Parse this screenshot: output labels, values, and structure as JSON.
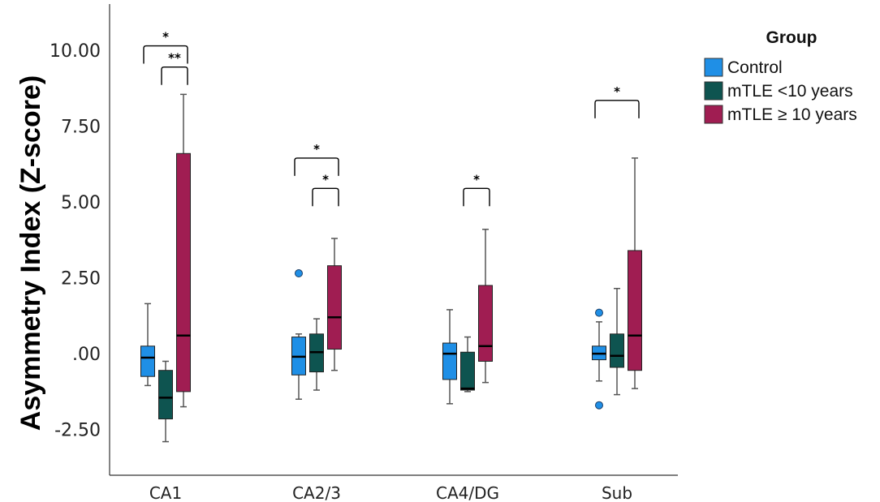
{
  "chart_data": {
    "type": "boxplot",
    "title": "",
    "xlabel": "",
    "ylabel": "Asymmetry Index (Z-score)",
    "ylim": [
      -3.8,
      11.5
    ],
    "yticks": [
      {
        "value": 10.0,
        "label": "10.00"
      },
      {
        "value": 7.5,
        "label": "7.50"
      },
      {
        "value": 5.0,
        "label": "5.00"
      },
      {
        "value": 2.5,
        "label": "2.50"
      },
      {
        "value": 0.0,
        "label": ".00"
      },
      {
        "value": -2.5,
        "label": "-2.50"
      }
    ],
    "categories": [
      "CA1",
      "CA2/3",
      "CA4/DG",
      "Sub"
    ],
    "legend": {
      "title": "Group",
      "position": "top-right",
      "entries": [
        {
          "name": "Control",
          "color": "#1f8fe6"
        },
        {
          "name": "mTLE <10 years",
          "color": "#0e5450"
        },
        {
          "name": "mTLE ≥ 10 years",
          "color": "#a01d52"
        }
      ]
    },
    "series": [
      {
        "name": "Control",
        "color": "#1f8fe6",
        "boxes": [
          {
            "min": -1.0,
            "q1": -0.7,
            "median": -0.08,
            "q3": 0.3,
            "max": 1.7,
            "outliers": []
          },
          {
            "min": -1.45,
            "q1": -0.65,
            "median": -0.05,
            "q3": 0.6,
            "max": 0.7,
            "outliers": [
              2.7
            ]
          },
          {
            "min": -1.6,
            "q1": -0.8,
            "median": 0.05,
            "q3": 0.4,
            "max": 1.5,
            "outliers": []
          },
          {
            "min": -0.85,
            "q1": -0.15,
            "median": 0.05,
            "q3": 0.3,
            "max": 1.1,
            "outliers": [
              1.4,
              -1.65
            ]
          }
        ]
      },
      {
        "name": "mTLE <10 years",
        "color": "#0e5450",
        "boxes": [
          {
            "min": -2.85,
            "q1": -2.1,
            "median": -1.4,
            "q3": -0.5,
            "max": -0.2,
            "outliers": []
          },
          {
            "min": -1.15,
            "q1": -0.55,
            "median": 0.1,
            "q3": 0.7,
            "max": 1.2,
            "outliers": []
          },
          {
            "min": -1.2,
            "q1": -1.15,
            "median": -1.1,
            "q3": 0.1,
            "max": 0.6,
            "outliers": []
          },
          {
            "min": -1.3,
            "q1": -0.4,
            "median": -0.02,
            "q3": 0.7,
            "max": 2.2,
            "outliers": []
          }
        ]
      },
      {
        "name": "mTLE ≥ 10 years",
        "color": "#a01d52",
        "boxes": [
          {
            "min": -1.7,
            "q1": -1.2,
            "median": 0.65,
            "q3": 6.65,
            "max": 8.6,
            "outliers": []
          },
          {
            "min": -0.5,
            "q1": 0.2,
            "median": 1.25,
            "q3": 2.95,
            "max": 3.85,
            "outliers": []
          },
          {
            "min": -0.9,
            "q1": -0.2,
            "median": 0.3,
            "q3": 2.3,
            "max": 4.15,
            "outliers": []
          },
          {
            "min": -1.1,
            "q1": -0.5,
            "median": 0.65,
            "q3": 3.45,
            "max": 6.5,
            "outliers": []
          }
        ]
      }
    ],
    "significance": [
      {
        "category": 0,
        "from": 0,
        "to": 2,
        "y": 10.2,
        "label": "*"
      },
      {
        "category": 0,
        "from": 1,
        "to": 2,
        "y": 9.5,
        "label": "**"
      },
      {
        "category": 1,
        "from": 0,
        "to": 2,
        "y": 6.5,
        "label": "*"
      },
      {
        "category": 1,
        "from": 1,
        "to": 2,
        "y": 5.5,
        "label": "*"
      },
      {
        "category": 2,
        "from": 1,
        "to": 2,
        "y": 5.5,
        "label": "*"
      },
      {
        "category": 3,
        "from": 0,
        "to": 2,
        "y": 8.4,
        "label": "*"
      }
    ]
  }
}
